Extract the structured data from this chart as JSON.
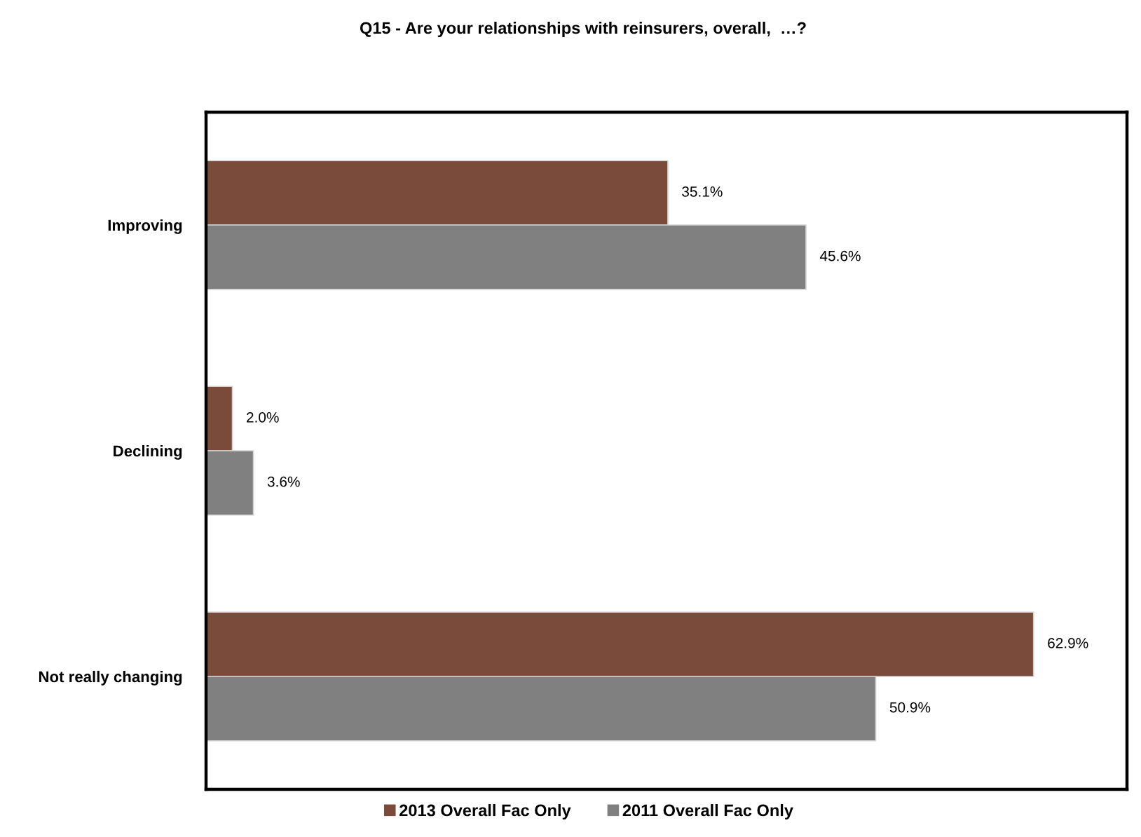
{
  "chart_data": {
    "type": "bar",
    "orientation": "horizontal",
    "title": "Q15 - Are your relationships with reinsurers, overall,  …?",
    "categories": [
      "Improving",
      "Declining",
      "Not really changing"
    ],
    "series": [
      {
        "name": "2013 Overall Fac Only",
        "color": "#7a4b3a",
        "values": [
          35.1,
          2.0,
          62.9
        ],
        "value_labels": [
          "35.1%",
          "2.0%",
          "62.9%"
        ]
      },
      {
        "name": "2011 Overall Fac Only",
        "color": "#808080",
        "values": [
          45.6,
          3.6,
          50.9
        ],
        "value_labels": [
          "45.6%",
          "3.6%",
          "50.9%"
        ]
      }
    ],
    "xlim": [
      0,
      70
    ],
    "tick_labels": "y",
    "legend": "bottom"
  }
}
